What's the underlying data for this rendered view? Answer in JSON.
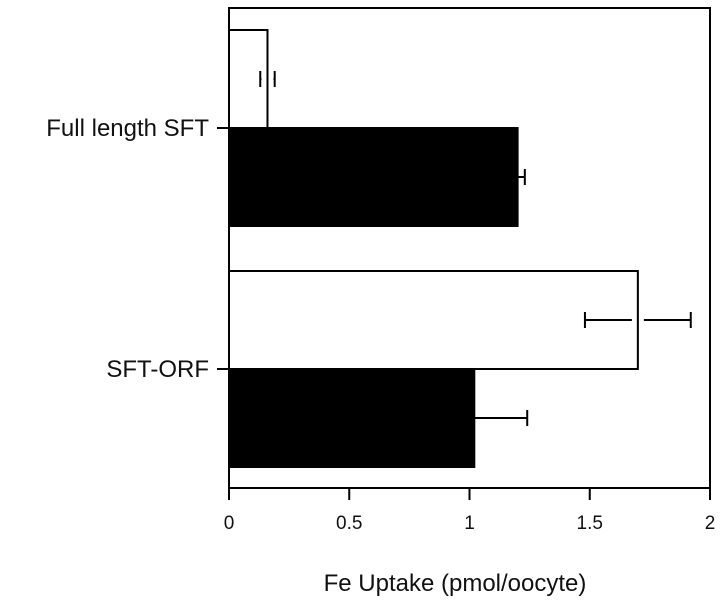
{
  "chart_data": {
    "type": "bar",
    "orientation": "horizontal",
    "title": "",
    "xlabel": "Fe Uptake (pmol/oocyte)",
    "ylabel": "",
    "xlim": [
      0,
      2
    ],
    "xticks": [
      0,
      0.5,
      1,
      1.5,
      2
    ],
    "xtick_labels": [
      "0",
      "0.5",
      "1",
      "1.5",
      "2"
    ],
    "grid": false,
    "legend": "none",
    "categories": [
      "Full length SFT",
      "SFT-ORF"
    ],
    "series": [
      {
        "fill": "#ffffff",
        "values": [
          0.16,
          1.7
        ],
        "errors": [
          0.03,
          0.22
        ]
      },
      {
        "fill": "#000000",
        "values": [
          1.2,
          1.02
        ],
        "errors": [
          0.03,
          0.22
        ]
      }
    ]
  }
}
